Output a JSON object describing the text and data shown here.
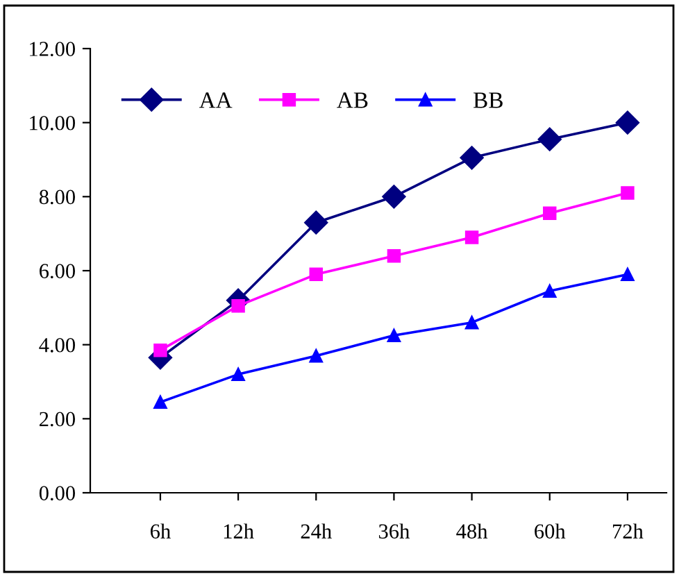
{
  "chart_data": {
    "type": "line",
    "categories": [
      "6h",
      "12h",
      "24h",
      "36h",
      "48h",
      "60h",
      "72h"
    ],
    "series": [
      {
        "name": "AA",
        "color": "#000080",
        "marker": "diamond",
        "values": [
          3.65,
          5.2,
          7.3,
          8.0,
          9.05,
          9.55,
          10.0
        ]
      },
      {
        "name": "AB",
        "color": "#ff00ff",
        "marker": "square",
        "values": [
          3.85,
          5.05,
          5.9,
          6.4,
          6.9,
          7.55,
          8.1
        ]
      },
      {
        "name": "BB",
        "color": "#0000ff",
        "marker": "triangle",
        "values": [
          2.45,
          3.2,
          3.7,
          4.25,
          4.6,
          5.45,
          5.9
        ]
      }
    ],
    "ylim": [
      0,
      12
    ],
    "yticks": [
      {
        "value": 0,
        "label": "0.00"
      },
      {
        "value": 2,
        "label": "2.00"
      },
      {
        "value": 4,
        "label": "4.00"
      },
      {
        "value": 6,
        "label": "6.00"
      },
      {
        "value": 8,
        "label": "8.00"
      },
      {
        "value": 10,
        "label": "10.00"
      },
      {
        "value": 12,
        "label": "12.00"
      }
    ],
    "grid": false,
    "legend": "top left",
    "line_style": "solid"
  }
}
